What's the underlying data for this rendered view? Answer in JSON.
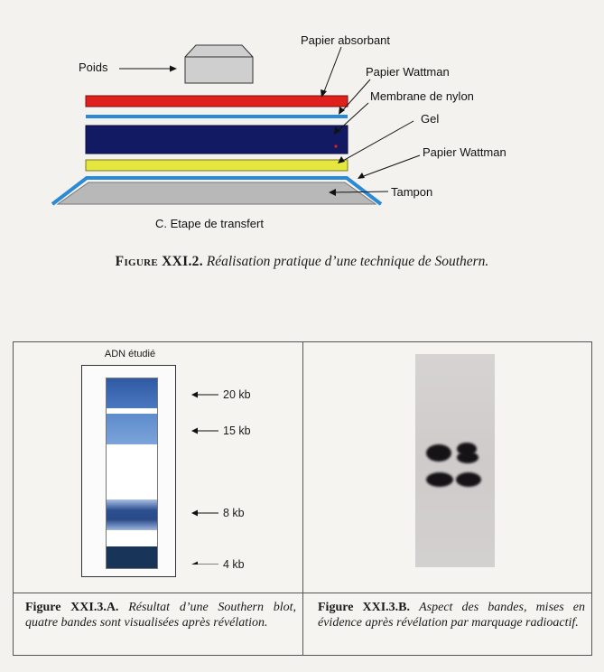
{
  "diagram": {
    "labels": {
      "poids": "Poids",
      "papier_absorbant": "Papier absorbant",
      "papier_wattman_top": "Papier Wattman",
      "membrane": "Membrane de nylon",
      "gel": "Gel",
      "papier_wattman_bottom": "Papier Wattman",
      "tampon": "Tampon",
      "stage": "C. Etape de transfert"
    },
    "colors": {
      "absorbant": "#e0201b",
      "wattman_top": "#2b8ad6",
      "membrane": "#121a63",
      "gel": "#e6e640",
      "wattman_bottom": "#2b8ad6",
      "tampon": "#b8b8b8",
      "poids": "#c8c8c8"
    }
  },
  "figure_top": {
    "number": "Figure XXI.2.",
    "text": "Réalisation pratique d’une technique de Southern."
  },
  "gel_panel": {
    "title": "ADN étudié",
    "bands": [
      {
        "label": "20 kb",
        "color": "#3a67ad"
      },
      {
        "label": "15 kb",
        "color": "#6e98d4"
      },
      {
        "label": "8 kb",
        "color": "#2d4f90"
      },
      {
        "label": "4 kb",
        "color": "#183458"
      }
    ]
  },
  "caption_left": {
    "number": "Figure XXI.3.A.",
    "text": "Résultat d’une Southern blot, quatre bandes sont visualisées après révélation."
  },
  "caption_right": {
    "number": "Figure XXI.3.B.",
    "text": "Aspect des bandes, mises en évidence après révélation par marquage radioactif."
  }
}
